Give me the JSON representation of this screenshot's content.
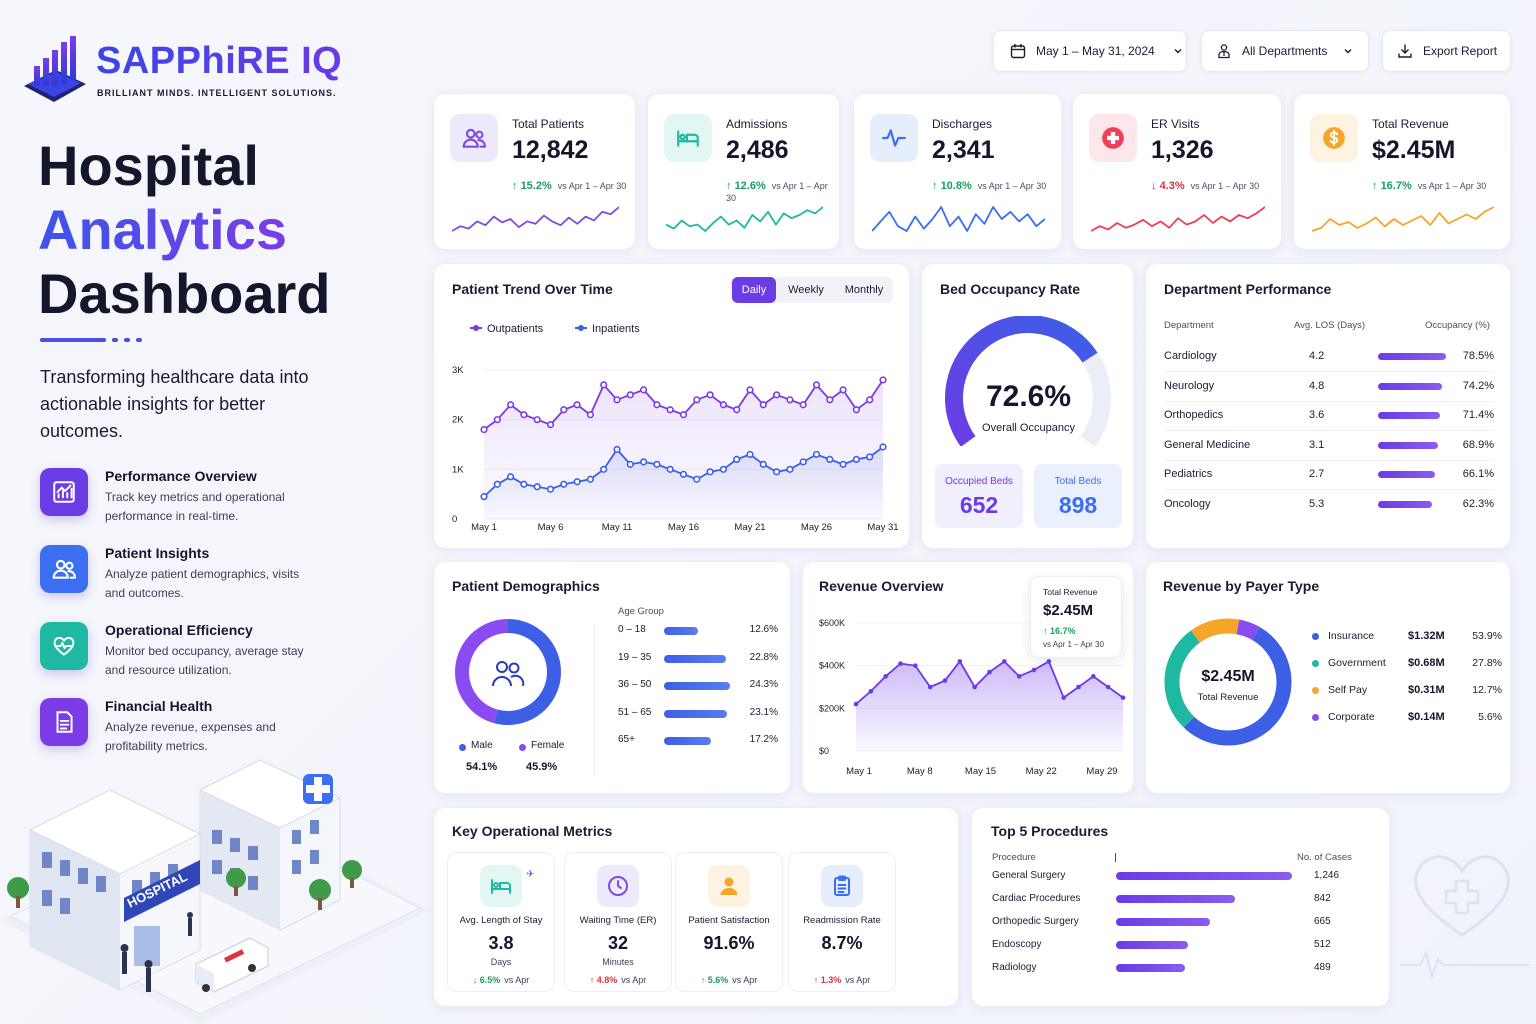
{
  "brand": {
    "name": "SAPPhiRE IQ",
    "tagline": "BRILLIANT MINDS. INTELLIGENT SOLUTIONS."
  },
  "hero": {
    "line1": "Hospital",
    "line2": "Analytics",
    "line3": "Dashboard",
    "description": "Transforming healthcare data into actionable insights for better outcomes."
  },
  "features": [
    {
      "title": "Performance Overview",
      "desc": "Track key metrics and operational performance in real-time.",
      "icon": "chart-icon",
      "color": "#6a3ce6"
    },
    {
      "title": "Patient Insights",
      "desc": "Analyze patient demographics, visits and outcomes.",
      "icon": "users-icon",
      "color": "#3b6ef0"
    },
    {
      "title": "Operational Efficiency",
      "desc": "Monitor bed occupancy, average stay and resource utilization.",
      "icon": "heart-pulse-icon",
      "color": "#1fb8a0"
    },
    {
      "title": "Financial Health",
      "desc": "Analyze revenue, expenses and profitability metrics.",
      "icon": "document-icon",
      "color": "#7b3ce6"
    }
  ],
  "controls": {
    "date_range": "May 1 – May 31, 2024",
    "department": "All Departments",
    "export": "Export Report"
  },
  "kpis": [
    {
      "label": "Total Patients",
      "value": "12,842",
      "change": "15.2%",
      "dir": "up",
      "vs": "vs Apr 1 – Apr 30",
      "color": "#7c4ddf",
      "bg": "#efe9fd",
      "icon": "users-icon",
      "spark": [
        3,
        4,
        3.5,
        5,
        4.2,
        6,
        4.8,
        5.5,
        3.8,
        5,
        4.5,
        6.2,
        5,
        4.2,
        5.8,
        4.5,
        6,
        5.2,
        7,
        6.5,
        8
      ]
    },
    {
      "label": "Admissions",
      "value": "2,486",
      "change": "12.6%",
      "dir": "up",
      "vs": "vs Apr 1 – Apr 30",
      "color": "#1fb8a0",
      "bg": "#e2f7f3",
      "icon": "bed-icon",
      "spark": [
        3,
        2.5,
        3.5,
        2.8,
        3,
        2.2,
        3.2,
        4,
        3,
        3.5,
        2.6,
        4.2,
        3.4,
        4.6,
        3,
        4.4,
        3.8,
        4.2,
        4.8,
        4.4,
        5.2
      ]
    },
    {
      "label": "Discharges",
      "value": "2,341",
      "change": "10.8%",
      "dir": "up",
      "vs": "vs Apr 1 – Apr 30",
      "color": "#3b6ef0",
      "bg": "#e6eefd",
      "icon": "pulse-icon",
      "spark": [
        3,
        3.8,
        4.6,
        3.4,
        3,
        4.2,
        3.2,
        4,
        5,
        3.4,
        4.2,
        3,
        4.4,
        3.6,
        5,
        4,
        4.6,
        3.8,
        4.4,
        3.4,
        4
      ]
    },
    {
      "label": "ER Visits",
      "value": "1,326",
      "change": "4.3%",
      "dir": "down",
      "vs": "vs Apr 1 – Apr 30",
      "color": "#ef3f56",
      "bg": "#fde7ea",
      "icon": "medical-cross-icon",
      "spark": [
        3,
        3.6,
        3.2,
        4,
        3.4,
        3.8,
        4.4,
        3.6,
        4.2,
        3.4,
        4.6,
        3.8,
        4.2,
        5,
        4,
        4.8,
        4.2,
        5,
        4.6,
        5.2,
        6
      ]
    },
    {
      "label": "Total Revenue",
      "value": "$2.45M",
      "change": "16.7%",
      "dir": "up",
      "vs": "vs Apr 1 – Apr 30",
      "color": "#f5a52a",
      "bg": "#fef2e0",
      "icon": "dollar-icon",
      "spark": [
        3,
        3.4,
        4.6,
        3.8,
        4.2,
        3.4,
        4,
        4.8,
        3.6,
        4.6,
        3.8,
        4.4,
        5,
        3.8,
        5.4,
        4,
        4.6,
        5.2,
        4.6,
        5.6,
        6.2
      ]
    }
  ],
  "trend": {
    "title": "Patient Trend Over Time",
    "tabs": [
      "Daily",
      "Weekly",
      "Monthly"
    ],
    "active_tab": "Daily",
    "chart_data": {
      "type": "line",
      "x_labels": [
        "May 1",
        "May 6",
        "May 11",
        "May 16",
        "May 21",
        "May 26",
        "May 31"
      ],
      "y_ticks": [
        "0",
        "1K",
        "2K",
        "3K"
      ],
      "ylim": [
        0,
        3000
      ],
      "series": [
        {
          "name": "Outpatients",
          "color": "#7c3ae6",
          "values": [
            1800,
            2000,
            2300,
            2100,
            2000,
            1900,
            2200,
            2300,
            2100,
            2700,
            2400,
            2500,
            2600,
            2300,
            2200,
            2100,
            2400,
            2500,
            2300,
            2200,
            2600,
            2300,
            2500,
            2400,
            2300,
            2700,
            2400,
            2600,
            2200,
            2400,
            2800
          ]
        },
        {
          "name": "Inpatients",
          "color": "#3c5fe6",
          "values": [
            450,
            700,
            850,
            700,
            650,
            600,
            700,
            750,
            800,
            1000,
            1400,
            1100,
            1150,
            1100,
            1000,
            900,
            800,
            950,
            1000,
            1200,
            1300,
            1100,
            950,
            1000,
            1150,
            1300,
            1200,
            1100,
            1200,
            1250,
            1450
          ]
        }
      ]
    }
  },
  "occupancy": {
    "title": "Bed Occupancy Rate",
    "value": "72.6%",
    "caption": "Overall Occupancy",
    "percent": 72.6,
    "occupied_label": "Occupied Beds",
    "occupied": "652",
    "total_label": "Total Beds",
    "total": "898"
  },
  "departments": {
    "title": "Department Performance",
    "headers": [
      "Department",
      "Avg. LOS (Days)",
      "Occupancy (%)"
    ],
    "rows": [
      {
        "name": "Cardiology",
        "los": "4.2",
        "occ": "78.5%",
        "pct": 78.5
      },
      {
        "name": "Neurology",
        "los": "4.8",
        "occ": "74.2%",
        "pct": 74.2
      },
      {
        "name": "Orthopedics",
        "los": "3.6",
        "occ": "71.4%",
        "pct": 71.4
      },
      {
        "name": "General Medicine",
        "los": "3.1",
        "occ": "68.9%",
        "pct": 68.9
      },
      {
        "name": "Pediatrics",
        "los": "2.7",
        "occ": "66.1%",
        "pct": 66.1
      },
      {
        "name": "Oncology",
        "los": "5.3",
        "occ": "62.3%",
        "pct": 62.3
      }
    ]
  },
  "demographics": {
    "title": "Patient Demographics",
    "gender": [
      {
        "label": "Male",
        "value": "54.1%",
        "pct": 54.1,
        "color": "#3c5fe6"
      },
      {
        "label": "Female",
        "value": "45.9%",
        "pct": 45.9,
        "color": "#8a4cf0"
      }
    ],
    "age_title": "Age Group",
    "ages": [
      {
        "label": "0 – 18",
        "value": "12.6%",
        "pct": 12.6
      },
      {
        "label": "19 – 35",
        "value": "22.8%",
        "pct": 22.8
      },
      {
        "label": "36 – 50",
        "value": "24.3%",
        "pct": 24.3
      },
      {
        "label": "51 – 65",
        "value": "23.1%",
        "pct": 23.1
      },
      {
        "label": "65+",
        "value": "17.2%",
        "pct": 17.2
      }
    ]
  },
  "revenue": {
    "title": "Revenue Overview",
    "tooltip": {
      "label": "Total Revenue",
      "value": "$2.45M",
      "change": "16.7%",
      "vs": "vs Apr 1 – Apr 30"
    },
    "chart_data": {
      "type": "area",
      "x_labels": [
        "May 1",
        "May 8",
        "May 15",
        "May 22",
        "May 29"
      ],
      "y_ticks": [
        "$0",
        "$200K",
        "$400K",
        "$600K"
      ],
      "ylim": [
        0,
        600000
      ],
      "values": [
        220000,
        280000,
        350000,
        410000,
        400000,
        300000,
        330000,
        420000,
        300000,
        370000,
        420000,
        350000,
        380000,
        420000,
        250000,
        300000,
        350000,
        300000,
        250000
      ]
    }
  },
  "payer": {
    "title": "Revenue by Payer Type",
    "center_value": "$2.45M",
    "center_label": "Total Revenue",
    "items": [
      {
        "label": "Insurance",
        "amount": "$1.32M",
        "pct_text": "53.9%",
        "pct": 53.9,
        "color": "#3c5fe6"
      },
      {
        "label": "Government",
        "amount": "$0.68M",
        "pct_text": "27.8%",
        "pct": 27.8,
        "color": "#1fb8a0"
      },
      {
        "label": "Self Pay",
        "amount": "$0.31M",
        "pct_text": "12.7%",
        "pct": 12.7,
        "color": "#f5a52a"
      },
      {
        "label": "Corporate",
        "amount": "$0.14M",
        "pct_text": "5.6%",
        "pct": 5.6,
        "color": "#8a4cf0"
      }
    ]
  },
  "ops": {
    "title": "Key Operational Metrics",
    "items": [
      {
        "label": "Avg. Length of Stay",
        "value": "3.8",
        "unit": "Days",
        "change": "6.5%",
        "dir": "down-good",
        "vs": "vs Apr",
        "color": "#1fb8a0",
        "bg": "#e2f7f3",
        "icon": "bed-icon"
      },
      {
        "label": "Waiting Time (ER)",
        "value": "32",
        "unit": "Minutes",
        "change": "4.8%",
        "dir": "up-bad",
        "vs": "vs Apr",
        "color": "#7c4ddf",
        "bg": "#efe9fd",
        "icon": "clock-icon"
      },
      {
        "label": "Patient Satisfaction",
        "value": "91.6%",
        "unit": "",
        "change": "5.6%",
        "dir": "up-good",
        "vs": "vs Apr",
        "color": "#f5a52a",
        "bg": "#fef2e0",
        "icon": "person-icon"
      },
      {
        "label": "Readmission Rate",
        "value": "8.7%",
        "unit": "",
        "change": "1.3%",
        "dir": "up-bad",
        "vs": "vs Apr",
        "color": "#3b6ef0",
        "bg": "#e6eefd",
        "icon": "clipboard-icon"
      }
    ]
  },
  "procedures": {
    "title": "Top 5 Procedures",
    "headers": [
      "Procedure",
      "No. of Cases"
    ],
    "items": [
      {
        "name": "General Surgery",
        "cases": "1,246",
        "n": 1246
      },
      {
        "name": "Cardiac Procedures",
        "cases": "842",
        "n": 842
      },
      {
        "name": "Orthopedic Surgery",
        "cases": "665",
        "n": 665
      },
      {
        "name": "Endoscopy",
        "cases": "512",
        "n": 512
      },
      {
        "name": "Radiology",
        "cases": "489",
        "n": 489
      }
    ]
  },
  "illustration": {
    "sign": "HOSPITAL"
  }
}
